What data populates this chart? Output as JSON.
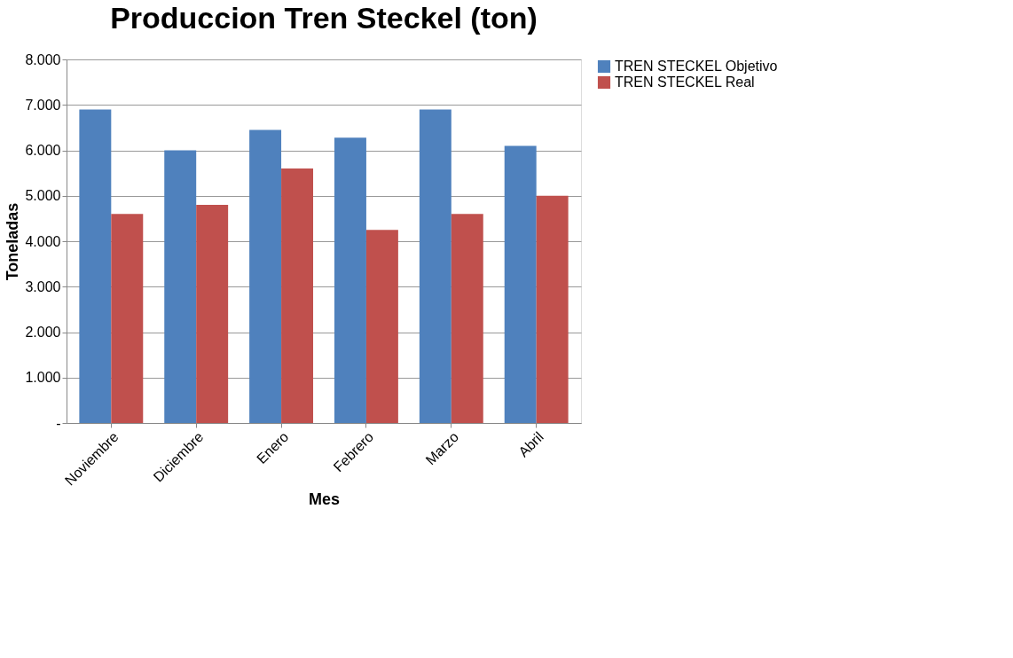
{
  "chart_data": {
    "type": "bar",
    "title": "Produccion Tren Steckel (ton)",
    "xlabel": "Mes",
    "ylabel": "Toneladas",
    "categories": [
      "Noviembre",
      "Diciembre",
      "Enero",
      "Febrero",
      "Marzo",
      "Abril"
    ],
    "series": [
      {
        "name": "TREN STECKEL Objetivo",
        "color": "#4f81bd",
        "values": [
          6900,
          6000,
          6450,
          6280,
          6900,
          6100
        ]
      },
      {
        "name": "TREN STECKEL Real",
        "color": "#c0504d",
        "values": [
          4600,
          4800,
          5600,
          4250,
          4600,
          5000
        ]
      }
    ],
    "ylim": [
      0,
      8000
    ],
    "yticks": [
      {
        "value": 0,
        "label": "-"
      },
      {
        "value": 1000,
        "label": "1.000"
      },
      {
        "value": 2000,
        "label": "2.000"
      },
      {
        "value": 3000,
        "label": "3.000"
      },
      {
        "value": 4000,
        "label": "4.000"
      },
      {
        "value": 5000,
        "label": "5.000"
      },
      {
        "value": 6000,
        "label": "6.000"
      },
      {
        "value": 7000,
        "label": "7.000"
      },
      {
        "value": 8000,
        "label": "8.000"
      }
    ],
    "grid": "y",
    "legend": "right"
  }
}
